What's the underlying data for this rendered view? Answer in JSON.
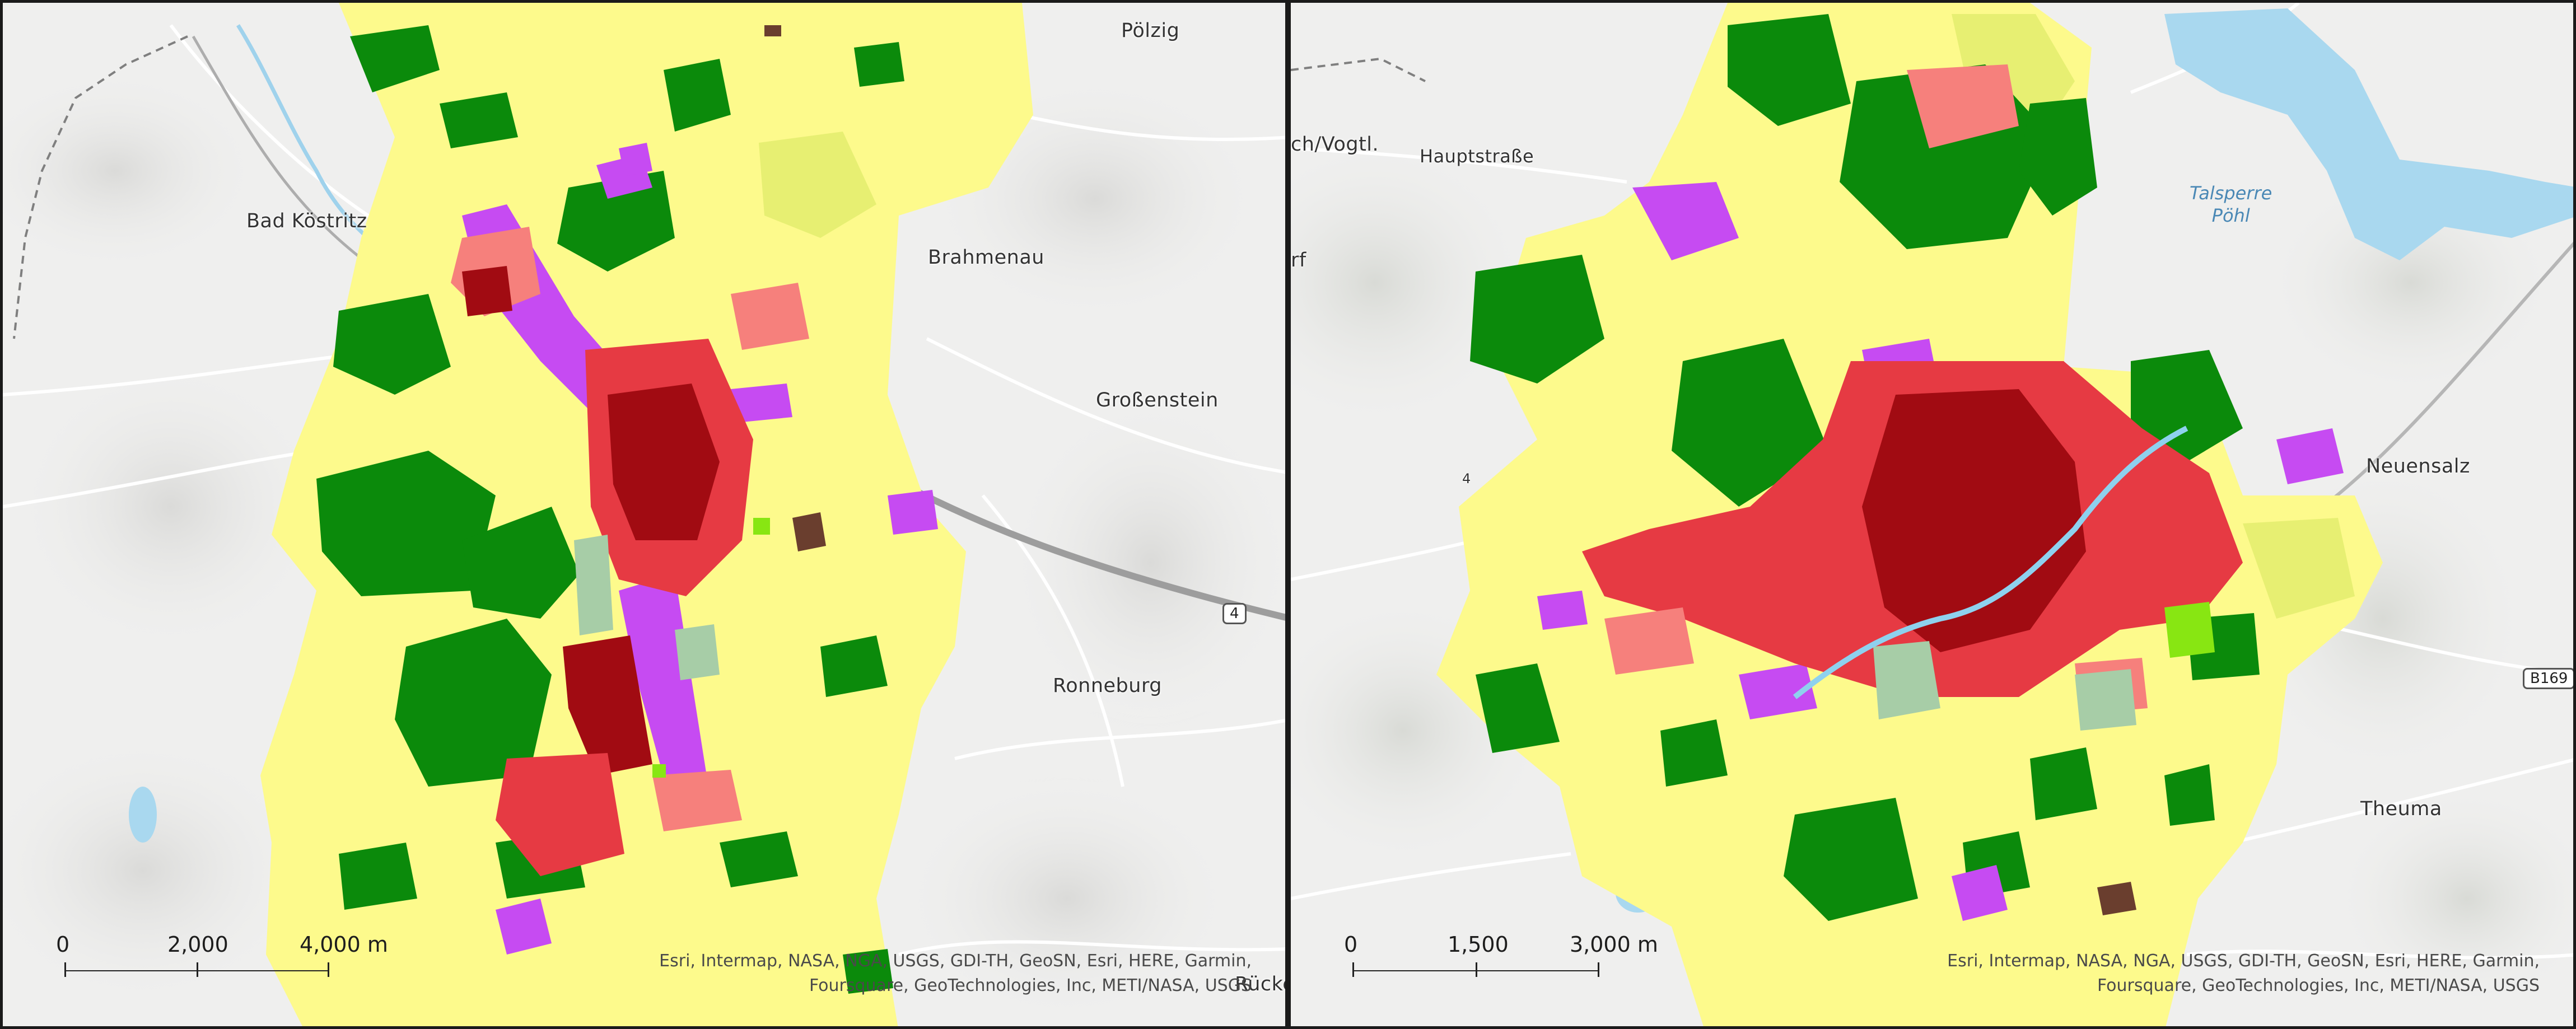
{
  "panels": [
    {
      "places": [
        "Pölzig",
        "Bad Köstritz",
        "Brahmenau",
        "Großenstein",
        "Ronneburg",
        "Rücke"
      ],
      "road_shields": [
        "4"
      ],
      "scale": {
        "labels": [
          "0",
          "2,000",
          "4,000 m"
        ]
      },
      "attribution": [
        "Esri, Intermap, NASA, NGA, USGS, GDI-TH, GeoSN, Esri, HERE, Garmin,",
        "Foursquare, GeoTechnologies, Inc, METI/NASA, USGS"
      ]
    },
    {
      "places": [
        "ch/Vogtl.",
        "Hauptstraße",
        "rf",
        "Neuensalz",
        "Theuma"
      ],
      "water_label": [
        "Talsperre",
        "Pöhl"
      ],
      "road_shields": [
        "B169",
        "4"
      ],
      "scale": {
        "labels": [
          "0",
          "1,500",
          "3,000 m"
        ]
      },
      "attribution": [
        "Esri, Intermap, NASA, NGA, USGS, GDI-TH, GeoSN, Esri, HERE, Garmin,",
        "Foursquare, GeoTechnologies, Inc, METI/NASA, USGS"
      ]
    }
  ],
  "colors": {
    "basemap": "#efefee",
    "water": "#a9d8ef",
    "forest": "#0b8a0b",
    "agriculture": "#fdfa8c",
    "grassland": "#e7ef72",
    "urban_dense": "#a10b12",
    "urban_medium": "#e63a43",
    "urban_low": "#f6807c",
    "industrial": "#c64bf2",
    "green_urban": "#a7cda7",
    "sports": "#88e612",
    "mine": "#6a3e2e"
  }
}
